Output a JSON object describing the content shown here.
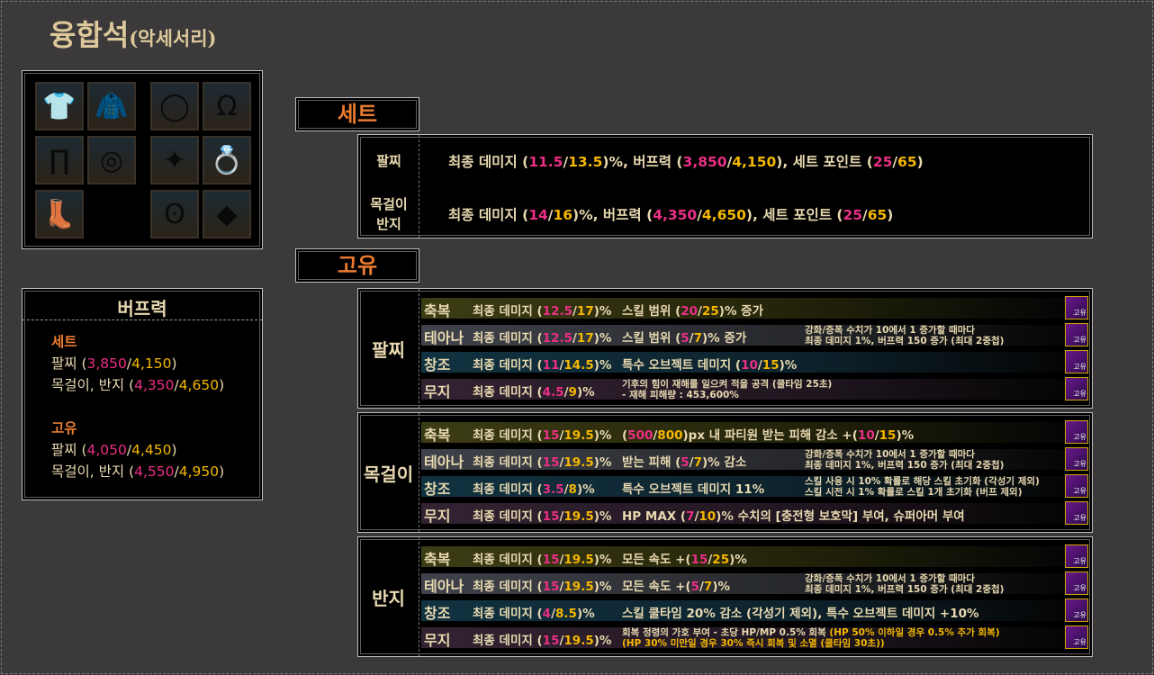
{
  "title": {
    "main": "융합석",
    "sub": "(악세서리)"
  },
  "colors": {
    "accent": "#e87b30",
    "low": "#ec2f86",
    "high": "#f5b800",
    "text": "#e8d9b0"
  },
  "equipment_icons": [
    "top-icon",
    "shoulder-icon",
    "bracelet-icon",
    "necklace-icon",
    "pants-icon",
    "belt-icon",
    "support-icon",
    "ring-icon",
    "shoes-icon",
    "",
    "earring-icon",
    "magic-stone-icon"
  ],
  "buff": {
    "heading": "버프력",
    "set_label": "세트",
    "set": [
      [
        "팔찌 (",
        [
          "p",
          "3,850"
        ],
        "/",
        [
          "y",
          "4,150"
        ],
        ")"
      ],
      [
        "목걸이, 반지 (",
        [
          "p",
          "4,350"
        ],
        "/",
        [
          "y",
          "4,650"
        ],
        ")"
      ]
    ],
    "unique_label": "고유",
    "unique": [
      [
        "팔찌 (",
        [
          "p",
          "4,050"
        ],
        "/",
        [
          "y",
          "4,450"
        ],
        ")"
      ],
      [
        "목걸이, 반지 (",
        [
          "p",
          "4,550"
        ],
        "/",
        [
          "y",
          "4,950"
        ],
        ")"
      ]
    ]
  },
  "set": {
    "tab": "세트",
    "rows": [
      {
        "label": "팔찌",
        "text": [
          "최종 데미지 (",
          [
            "p",
            "11.5"
          ],
          "/",
          [
            "y",
            "13.5"
          ],
          ")%, 버프력 (",
          [
            "p",
            "3,850"
          ],
          "/",
          [
            "y",
            "4,150"
          ],
          "), 세트 포인트 (",
          [
            "p",
            "25"
          ],
          "/",
          [
            "y",
            "65"
          ],
          ")"
        ]
      },
      {
        "label": "목걸이\n반지",
        "text": [
          "최종 데미지 (",
          [
            "p",
            "14"
          ],
          "/",
          [
            "y",
            "16"
          ],
          ")%, 버프력 (",
          [
            "p",
            "4,350"
          ],
          "/",
          [
            "y",
            "4,650"
          ],
          "), 세트 포인트 (",
          [
            "p",
            "25"
          ],
          "/",
          [
            "y",
            "65"
          ],
          ")"
        ]
      }
    ]
  },
  "unique": {
    "tab": "고유",
    "icon_badge": "고유",
    "groups": [
      {
        "label": "팔찌",
        "rows": [
          {
            "tag": "축복",
            "c1": [
              "최종 데미지 (",
              [
                "p",
                "12.5"
              ],
              "/",
              [
                "y",
                "17"
              ],
              ")%"
            ],
            "c2": [
              "스킬 범위 (",
              [
                "p",
                "20"
              ],
              "/",
              [
                "y",
                "25"
              ],
              ")% 증가"
            ],
            "c3": []
          },
          {
            "tag": "테아나",
            "c1": [
              "최종 데미지 (",
              [
                "p",
                "12.5"
              ],
              "/",
              [
                "y",
                "17"
              ],
              ")%"
            ],
            "c2": [
              "스킬 범위 (",
              [
                "p",
                "5"
              ],
              "/",
              [
                "y",
                "7"
              ],
              ")% 증가"
            ],
            "c3": [
              "강화/증폭 수치가 10에서 1 증가할 때마다\n최종 데미지 1%, 버프력 150 증가 (최대 2중첩)"
            ]
          },
          {
            "tag": "창조",
            "c1": [
              "최종 데미지 (",
              [
                "p",
                "11"
              ],
              "/",
              [
                "y",
                "14.5"
              ],
              ")%"
            ],
            "c2": [
              "특수 오브젝트 데미지 (",
              [
                "p",
                "10"
              ],
              "/",
              [
                "y",
                "15"
              ],
              ")%"
            ],
            "c3": []
          },
          {
            "tag": "무지",
            "c1": [
              "최종 데미지 (",
              [
                "p",
                "4.5"
              ],
              "/",
              [
                "y",
                "9"
              ],
              ")%"
            ],
            "c2small": true,
            "c2": [
              "기후의 힘이 재해를 일으켜 적을 공격 (쿨타임 25초)\n- 재해 피해량 : 453,600%"
            ],
            "c3": []
          }
        ]
      },
      {
        "label": "목걸이",
        "rows": [
          {
            "tag": "축복",
            "c1": [
              "최종 데미지 (",
              [
                "p",
                "15"
              ],
              "/",
              [
                "y",
                "19.5"
              ],
              ")%"
            ],
            "c2": [
              "(",
              [
                "p",
                "500"
              ],
              "/",
              [
                "y",
                "800"
              ],
              ")px 내 파티원 받는 피해 감소 +(",
              [
                "p",
                "10"
              ],
              "/",
              [
                "y",
                "15"
              ],
              ")%"
            ],
            "c3": []
          },
          {
            "tag": "테아나",
            "c1": [
              "최종 데미지 (",
              [
                "p",
                "15"
              ],
              "/",
              [
                "y",
                "19.5"
              ],
              ")%"
            ],
            "c2": [
              "받는 피해 (",
              [
                "p",
                "5"
              ],
              "/",
              [
                "y",
                "7"
              ],
              ")% 감소"
            ],
            "c3": [
              "강화/증폭 수치가 10에서 1 증가할 때마다\n최종 데미지 1%, 버프력 150 증가 (최대 2중첩)"
            ]
          },
          {
            "tag": "창조",
            "c1": [
              "최종 데미지 (",
              [
                "p",
                "3.5"
              ],
              "/",
              [
                "y",
                "8"
              ],
              ")%"
            ],
            "c2": [
              "특수 오브젝트 데미지 11%"
            ],
            "c3": [
              "스킬 사용 시 10% 확률로 해당 스킬 초기화 (각성기 제외)\n스킬 시전 시 1% 확률로 스킬 1개 초기화 (버프 제외)"
            ]
          },
          {
            "tag": "무지",
            "c1": [
              "최종 데미지 (",
              [
                "p",
                "15"
              ],
              "/",
              [
                "y",
                "19.5"
              ],
              ")%"
            ],
            "c2": [
              "HP MAX (",
              [
                "p",
                "7"
              ],
              "/",
              [
                "y",
                "10"
              ],
              ")% 수치의 [충전형 보호막] 부여, 슈퍼아머 부여"
            ],
            "c3": []
          }
        ]
      },
      {
        "label": "반지",
        "rows": [
          {
            "tag": "축복",
            "c1": [
              "최종 데미지 (",
              [
                "p",
                "15"
              ],
              "/",
              [
                "y",
                "19.5"
              ],
              ")%"
            ],
            "c2": [
              "모든 속도 +(",
              [
                "p",
                "15"
              ],
              "/",
              [
                "y",
                "25"
              ],
              ")%"
            ],
            "c3": []
          },
          {
            "tag": "테아나",
            "c1": [
              "최종 데미지 (",
              [
                "p",
                "15"
              ],
              "/",
              [
                "y",
                "19.5"
              ],
              ")%"
            ],
            "c2": [
              "모든 속도 +(",
              [
                "p",
                "5"
              ],
              "/",
              [
                "y",
                "7"
              ],
              ")%"
            ],
            "c3": [
              "강화/증폭 수치가 10에서 1 증가할 때마다\n최종 데미지 1%, 버프력 150 증가 (최대 2중첩)"
            ]
          },
          {
            "tag": "창조",
            "c1": [
              "최종 데미지 (",
              [
                "p",
                "4"
              ],
              "/",
              [
                "y",
                "8.5"
              ],
              ")%"
            ],
            "c2": [
              "스킬 쿨타임 20% 감소 (각성기 제외), 특수 오브젝트 데미지 +10%"
            ],
            "c3": []
          },
          {
            "tag": "무지",
            "c1": [
              "최종 데미지 (",
              [
                "p",
                "15"
              ],
              "/",
              [
                "y",
                "19.5"
              ],
              ")%"
            ],
            "c2small": true,
            "c2": [
              "회복 정령의 가호 부여 - 초당 HP/MP 0.5% 회복 ",
              [
                "y",
                "(HP 50% 이하일 경우 0.5% 추가 회복)\n(HP 30% 미만일 경우 30% 즉시 회복 및 소멸 (쿨타임 30초))"
              ]
            ],
            "c3": []
          }
        ]
      }
    ]
  }
}
